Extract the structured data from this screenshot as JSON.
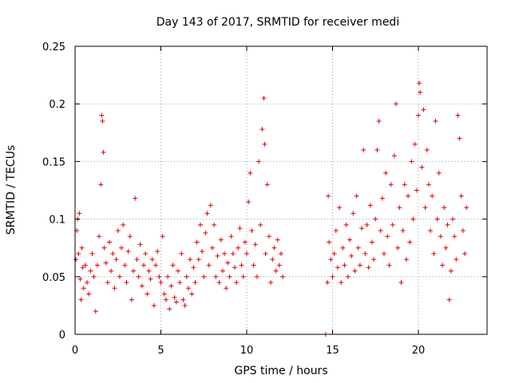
{
  "chart_data": {
    "type": "scatter",
    "title": "Day 143 of 2017, SRMTID for receiver medi",
    "xlabel": "GPS time / hours",
    "ylabel": "SRMTID / TECUs",
    "xlim": [
      0,
      24
    ],
    "ylim": [
      0,
      0.25
    ],
    "x_ticks": [
      0,
      5,
      10,
      15,
      20
    ],
    "x_tick_labels": [
      "0",
      "5",
      "10",
      "15",
      "20"
    ],
    "y_ticks": [
      0,
      0.05,
      0.1,
      0.15,
      0.2,
      0.25
    ],
    "y_tick_labels": [
      "0",
      "0.05",
      "0.1",
      "0.15",
      "0.2",
      "0.25"
    ],
    "grid": true,
    "marker": "plus",
    "color": "#e00000",
    "series": [
      {
        "name": "SRMTID",
        "points": [
          [
            0.05,
            0.065
          ],
          [
            0.1,
            0.09
          ],
          [
            0.15,
            0.1
          ],
          [
            0.2,
            0.07
          ],
          [
            0.25,
            0.105
          ],
          [
            0.3,
            0.048
          ],
          [
            0.35,
            0.03
          ],
          [
            0.4,
            0.075
          ],
          [
            0.45,
            0.058
          ],
          [
            0.5,
            0.04
          ],
          [
            0.6,
            0.06
          ],
          [
            0.7,
            0.045
          ],
          [
            0.8,
            0.035
          ],
          [
            0.9,
            0.055
          ],
          [
            1.0,
            0.07
          ],
          [
            1.1,
            0.05
          ],
          [
            1.2,
            0.02
          ],
          [
            1.3,
            0.06
          ],
          [
            1.4,
            0.085
          ],
          [
            1.5,
            0.13
          ],
          [
            1.55,
            0.19
          ],
          [
            1.6,
            0.185
          ],
          [
            1.65,
            0.158
          ],
          [
            1.7,
            0.075
          ],
          [
            1.8,
            0.062
          ],
          [
            1.9,
            0.045
          ],
          [
            2.0,
            0.08
          ],
          [
            2.1,
            0.055
          ],
          [
            2.2,
            0.07
          ],
          [
            2.3,
            0.04
          ],
          [
            2.4,
            0.065
          ],
          [
            2.5,
            0.09
          ],
          [
            2.6,
            0.05
          ],
          [
            2.7,
            0.075
          ],
          [
            2.8,
            0.095
          ],
          [
            2.9,
            0.06
          ],
          [
            3.0,
            0.045
          ],
          [
            3.1,
            0.072
          ],
          [
            3.2,
            0.085
          ],
          [
            3.3,
            0.03
          ],
          [
            3.4,
            0.055
          ],
          [
            3.5,
            0.118
          ],
          [
            3.6,
            0.065
          ],
          [
            3.7,
            0.05
          ],
          [
            3.8,
            0.078
          ],
          [
            3.9,
            0.042
          ],
          [
            4.0,
            0.06
          ],
          [
            4.1,
            0.07
          ],
          [
            4.2,
            0.035
          ],
          [
            4.3,
            0.055
          ],
          [
            4.4,
            0.048
          ],
          [
            4.5,
            0.065
          ],
          [
            4.6,
            0.025
          ],
          [
            4.7,
            0.06
          ],
          [
            4.8,
            0.072
          ],
          [
            4.9,
            0.05
          ],
          [
            5.0,
            0.045
          ],
          [
            5.1,
            0.085
          ],
          [
            5.2,
            0.035
          ],
          [
            5.3,
            0.03
          ],
          [
            5.4,
            0.05
          ],
          [
            5.5,
            0.022
          ],
          [
            5.6,
            0.042
          ],
          [
            5.7,
            0.06
          ],
          [
            5.8,
            0.032
          ],
          [
            5.9,
            0.028
          ],
          [
            6.0,
            0.055
          ],
          [
            6.1,
            0.045
          ],
          [
            6.2,
            0.07
          ],
          [
            6.3,
            0.03
          ],
          [
            6.4,
            0.025
          ],
          [
            6.5,
            0.05
          ],
          [
            6.6,
            0.04
          ],
          [
            6.7,
            0.065
          ],
          [
            6.8,
            0.035
          ],
          [
            6.9,
            0.058
          ],
          [
            7.0,
            0.045
          ],
          [
            7.1,
            0.08
          ],
          [
            7.2,
            0.065
          ],
          [
            7.3,
            0.095
          ],
          [
            7.4,
            0.072
          ],
          [
            7.5,
            0.05
          ],
          [
            7.6,
            0.088
          ],
          [
            7.7,
            0.105
          ],
          [
            7.8,
            0.06
          ],
          [
            7.9,
            0.112
          ],
          [
            8.0,
            0.075
          ],
          [
            8.1,
            0.095
          ],
          [
            8.2,
            0.05
          ],
          [
            8.3,
            0.068
          ],
          [
            8.4,
            0.045
          ],
          [
            8.5,
            0.082
          ],
          [
            8.6,
            0.055
          ],
          [
            8.7,
            0.07
          ],
          [
            8.8,
            0.04
          ],
          [
            8.9,
            0.062
          ],
          [
            9.0,
            0.05
          ],
          [
            9.1,
            0.085
          ],
          [
            9.2,
            0.07
          ],
          [
            9.3,
            0.058
          ],
          [
            9.4,
            0.045
          ],
          [
            9.5,
            0.075
          ],
          [
            9.6,
            0.092
          ],
          [
            9.7,
            0.06
          ],
          [
            9.8,
            0.05
          ],
          [
            9.9,
            0.08
          ],
          [
            10.0,
            0.07
          ],
          [
            10.1,
            0.115
          ],
          [
            10.2,
            0.14
          ],
          [
            10.3,
            0.09
          ],
          [
            10.4,
            0.06
          ],
          [
            10.5,
            0.078
          ],
          [
            10.6,
            0.05
          ],
          [
            10.7,
            0.15
          ],
          [
            10.8,
            0.095
          ],
          [
            10.9,
            0.178
          ],
          [
            11.0,
            0.205
          ],
          [
            11.05,
            0.165
          ],
          [
            11.1,
            0.07
          ],
          [
            11.2,
            0.13
          ],
          [
            11.3,
            0.085
          ],
          [
            11.4,
            0.045
          ],
          [
            11.5,
            0.065
          ],
          [
            11.6,
            0.075
          ],
          [
            11.7,
            0.055
          ],
          [
            11.8,
            0.082
          ],
          [
            11.9,
            0.06
          ],
          [
            12.0,
            0.07
          ],
          [
            12.1,
            0.05
          ],
          [
            14.6,
            0.0
          ],
          [
            14.7,
            0.045
          ],
          [
            14.75,
            0.12
          ],
          [
            14.8,
            0.08
          ],
          [
            14.9,
            0.065
          ],
          [
            15.0,
            0.05
          ],
          [
            15.1,
            0.07
          ],
          [
            15.2,
            0.09
          ],
          [
            15.3,
            0.058
          ],
          [
            15.4,
            0.11
          ],
          [
            15.5,
            0.045
          ],
          [
            15.6,
            0.075
          ],
          [
            15.7,
            0.06
          ],
          [
            15.8,
            0.095
          ],
          [
            15.9,
            0.05
          ],
          [
            16.0,
            0.082
          ],
          [
            16.1,
            0.068
          ],
          [
            16.2,
            0.105
          ],
          [
            16.3,
            0.055
          ],
          [
            16.4,
            0.12
          ],
          [
            16.5,
            0.075
          ],
          [
            16.6,
            0.06
          ],
          [
            16.7,
            0.092
          ],
          [
            16.8,
            0.16
          ],
          [
            16.9,
            0.07
          ],
          [
            17.0,
            0.095
          ],
          [
            17.1,
            0.058
          ],
          [
            17.2,
            0.112
          ],
          [
            17.3,
            0.08
          ],
          [
            17.4,
            0.065
          ],
          [
            17.5,
            0.1
          ],
          [
            17.6,
            0.16
          ],
          [
            17.7,
            0.185
          ],
          [
            17.8,
            0.09
          ],
          [
            17.9,
            0.118
          ],
          [
            18.0,
            0.07
          ],
          [
            18.1,
            0.14
          ],
          [
            18.2,
            0.085
          ],
          [
            18.3,
            0.06
          ],
          [
            18.4,
            0.13
          ],
          [
            18.5,
            0.095
          ],
          [
            18.6,
            0.155
          ],
          [
            18.7,
            0.2
          ],
          [
            18.8,
            0.075
          ],
          [
            18.9,
            0.11
          ],
          [
            19.0,
            0.045
          ],
          [
            19.1,
            0.09
          ],
          [
            19.2,
            0.13
          ],
          [
            19.3,
            0.065
          ],
          [
            19.4,
            0.12
          ],
          [
            19.5,
            0.08
          ],
          [
            19.6,
            0.15
          ],
          [
            19.7,
            0.1
          ],
          [
            19.8,
            0.165
          ],
          [
            19.9,
            0.125
          ],
          [
            20.0,
            0.19
          ],
          [
            20.05,
            0.218
          ],
          [
            20.1,
            0.21
          ],
          [
            20.2,
            0.145
          ],
          [
            20.3,
            0.195
          ],
          [
            20.4,
            0.11
          ],
          [
            20.5,
            0.16
          ],
          [
            20.6,
            0.13
          ],
          [
            20.7,
            0.09
          ],
          [
            20.8,
            0.12
          ],
          [
            20.9,
            0.07
          ],
          [
            21.0,
            0.185
          ],
          [
            21.1,
            0.1
          ],
          [
            21.2,
            0.14
          ],
          [
            21.3,
            0.085
          ],
          [
            21.4,
            0.06
          ],
          [
            21.5,
            0.11
          ],
          [
            21.6,
            0.075
          ],
          [
            21.7,
            0.095
          ],
          [
            21.8,
            0.03
          ],
          [
            21.9,
            0.055
          ],
          [
            22.0,
            0.1
          ],
          [
            22.1,
            0.085
          ],
          [
            22.2,
            0.065
          ],
          [
            22.3,
            0.19
          ],
          [
            22.4,
            0.17
          ],
          [
            22.5,
            0.12
          ],
          [
            22.6,
            0.09
          ],
          [
            22.7,
            0.07
          ],
          [
            22.8,
            0.11
          ]
        ]
      }
    ]
  }
}
